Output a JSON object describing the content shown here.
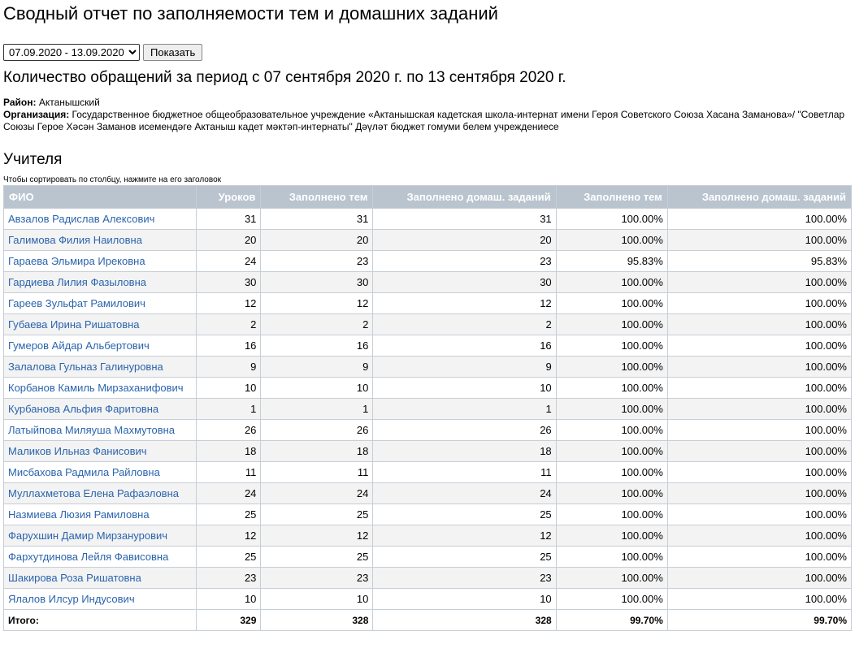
{
  "title": "Сводный отчет по заполняемости тем и домашних заданий",
  "period_select": "07.09.2020 - 13.09.2020",
  "show_button": "Показать",
  "subtitle": "Количество обращений за период с 07 сентября 2020 г. по 13 сентября 2020 г.",
  "district_label": "Район:",
  "district": "Актанышский",
  "org_label": "Организация:",
  "org": "Государственное бюджетное общеобразовательное учреждение «Актанышская кадетская школа-интернат имени Героя Советского Союза Хасана Заманова»/ \"Советлар Союзы Герое Хәсән Заманов исемендәге Актаныш кадет мәктәп-интернаты\" Дәүләт бюджет гомуми белем учреждениесе",
  "section": "Учителя",
  "sort_hint": "Чтобы сортировать по столбцу, нажмите на его заголовок",
  "columns": [
    "ФИО",
    "Уроков",
    "Заполнено тем",
    "Заполнено домаш. заданий",
    "Заполнено тем",
    "Заполнено домаш. заданий"
  ],
  "rows": [
    [
      "Авзалов Радислав Алексович",
      "31",
      "31",
      "31",
      "100.00%",
      "100.00%"
    ],
    [
      "Галимова Филия Наиловна",
      "20",
      "20",
      "20",
      "100.00%",
      "100.00%"
    ],
    [
      "Гараева Эльмира Ирековна",
      "24",
      "23",
      "23",
      "95.83%",
      "95.83%"
    ],
    [
      "Гардиева Лилия Фазыловна",
      "30",
      "30",
      "30",
      "100.00%",
      "100.00%"
    ],
    [
      "Гареев Зульфат Рамилович",
      "12",
      "12",
      "12",
      "100.00%",
      "100.00%"
    ],
    [
      "Губаева Ирина Ришатовна",
      "2",
      "2",
      "2",
      "100.00%",
      "100.00%"
    ],
    [
      "Гумеров Айдар Альбертович",
      "16",
      "16",
      "16",
      "100.00%",
      "100.00%"
    ],
    [
      "Залалова Гульназ Галинуровна",
      "9",
      "9",
      "9",
      "100.00%",
      "100.00%"
    ],
    [
      "Корбанов Камиль Мирзаханифович",
      "10",
      "10",
      "10",
      "100.00%",
      "100.00%"
    ],
    [
      "Курбанова Альфия Фаритовна",
      "1",
      "1",
      "1",
      "100.00%",
      "100.00%"
    ],
    [
      "Латыйпова Миляуша Махмутовна",
      "26",
      "26",
      "26",
      "100.00%",
      "100.00%"
    ],
    [
      "Маликов Ильназ Фанисович",
      "18",
      "18",
      "18",
      "100.00%",
      "100.00%"
    ],
    [
      "Мисбахова Радмила Райловна",
      "11",
      "11",
      "11",
      "100.00%",
      "100.00%"
    ],
    [
      "Муллахметова Елена Рафаэловна",
      "24",
      "24",
      "24",
      "100.00%",
      "100.00%"
    ],
    [
      "Назмиева Люзия Рамиловна",
      "25",
      "25",
      "25",
      "100.00%",
      "100.00%"
    ],
    [
      "Фарухшин Дамир Мирзанурович",
      "12",
      "12",
      "12",
      "100.00%",
      "100.00%"
    ],
    [
      "Фархутдинова Лейля Фависовна",
      "25",
      "25",
      "25",
      "100.00%",
      "100.00%"
    ],
    [
      "Шакирова Роза Ришатовна",
      "23",
      "23",
      "23",
      "100.00%",
      "100.00%"
    ],
    [
      "Ялалов Илсур Индусович",
      "10",
      "10",
      "10",
      "100.00%",
      "100.00%"
    ]
  ],
  "total": [
    "Итого:",
    "329",
    "328",
    "328",
    "99.70%",
    "99.70%"
  ]
}
